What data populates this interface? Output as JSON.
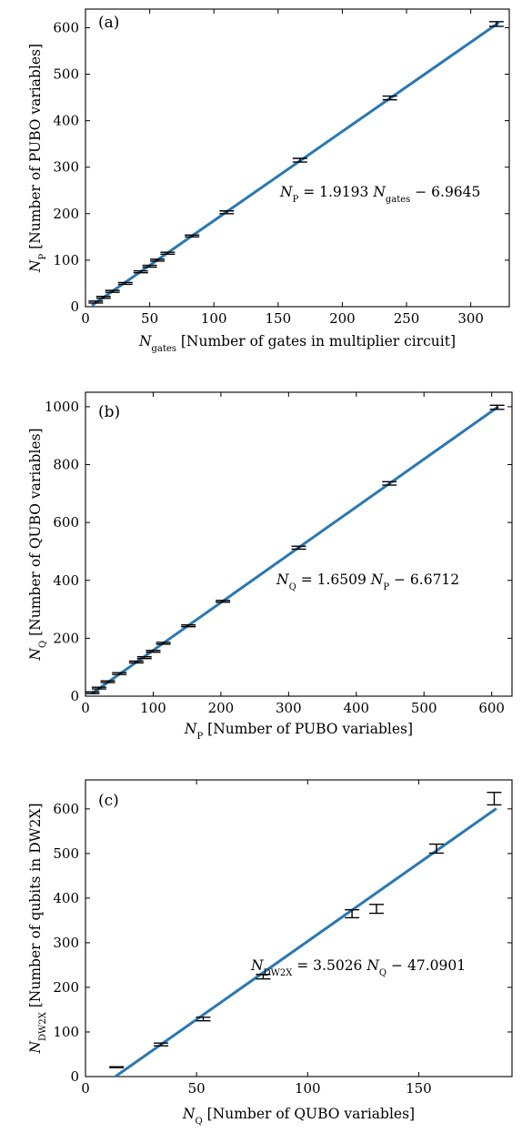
{
  "chart_data": [
    {
      "type": "scatter",
      "panel_label": "(a)",
      "xlabel_sym": "N",
      "xlabel_sub": "gates",
      "xlabel_text": "[Number of gates in multiplier circuit]",
      "ylabel_sym": "N",
      "ylabel_sub": "P",
      "ylabel_text": "[Number of PUBO variables]",
      "xlim": [
        0,
        330
      ],
      "ylim": [
        0,
        640
      ],
      "xticks": [
        0,
        50,
        100,
        150,
        200,
        250,
        300
      ],
      "yticks": [
        0,
        100,
        200,
        300,
        400,
        500,
        600
      ],
      "fit": {
        "slope": 1.9193,
        "intercept": -6.9645,
        "x_range": [
          5,
          322
        ]
      },
      "annotation": {
        "lhs": "N",
        "lhs_sub": "P",
        "eq": "= 1.9193 ",
        "var": "N",
        "var_sub": "gates",
        "rest": " − 6.9645"
      },
      "points": [
        {
          "x": 8,
          "y": 10,
          "err": 2
        },
        {
          "x": 14,
          "y": 20,
          "err": 2
        },
        {
          "x": 21,
          "y": 33,
          "err": 2
        },
        {
          "x": 31,
          "y": 50,
          "err": 2
        },
        {
          "x": 43,
          "y": 75,
          "err": 2
        },
        {
          "x": 50,
          "y": 87,
          "err": 2
        },
        {
          "x": 56,
          "y": 100,
          "err": 2
        },
        {
          "x": 64,
          "y": 115,
          "err": 2
        },
        {
          "x": 83,
          "y": 152,
          "err": 2
        },
        {
          "x": 110,
          "y": 203,
          "err": 3
        },
        {
          "x": 167,
          "y": 315,
          "err": 4
        },
        {
          "x": 237,
          "y": 449,
          "err": 4
        },
        {
          "x": 320,
          "y": 608,
          "err": 5
        }
      ]
    },
    {
      "type": "scatter",
      "panel_label": "(b)",
      "xlabel_sym": "N",
      "xlabel_sub": "P",
      "xlabel_text": "[Number of PUBO variables]",
      "ylabel_sym": "N",
      "ylabel_sub": "Q",
      "ylabel_text": "[Number of QUBO variables]",
      "xlim": [
        0,
        630
      ],
      "ylim": [
        0,
        1050
      ],
      "xticks": [
        0,
        100,
        200,
        300,
        400,
        500,
        600
      ],
      "yticks": [
        0,
        200,
        400,
        600,
        800,
        1000
      ],
      "fit": {
        "slope": 1.6509,
        "intercept": -6.6712,
        "x_range": [
          10,
          610
        ]
      },
      "annotation": {
        "lhs": "N",
        "lhs_sub": "Q",
        "eq": "= 1.6509 ",
        "var": "N",
        "var_sub": "P",
        "rest": " − 6.6712"
      },
      "points": [
        {
          "x": 10,
          "y": 12,
          "err": 3
        },
        {
          "x": 20,
          "y": 28,
          "err": 3
        },
        {
          "x": 33,
          "y": 50,
          "err": 3
        },
        {
          "x": 50,
          "y": 78,
          "err": 3
        },
        {
          "x": 75,
          "y": 118,
          "err": 3
        },
        {
          "x": 87,
          "y": 133,
          "err": 3
        },
        {
          "x": 100,
          "y": 155,
          "err": 3
        },
        {
          "x": 115,
          "y": 183,
          "err": 3
        },
        {
          "x": 152,
          "y": 243,
          "err": 3
        },
        {
          "x": 203,
          "y": 328,
          "err": 3
        },
        {
          "x": 315,
          "y": 513,
          "err": 5
        },
        {
          "x": 449,
          "y": 735,
          "err": 6
        },
        {
          "x": 608,
          "y": 998,
          "err": 7
        }
      ]
    },
    {
      "type": "scatter",
      "panel_label": "(c)",
      "xlabel_sym": "N",
      "xlabel_sub": "Q",
      "xlabel_text": "[Number of QUBO variables]",
      "ylabel_sym": "N",
      "ylabel_sub": "DW2X",
      "ylabel_text": "[Number of qubits in DW2X]",
      "xlim": [
        0,
        192
      ],
      "ylim": [
        0,
        665
      ],
      "xticks": [
        0,
        50,
        100,
        150
      ],
      "yticks": [
        0,
        100,
        200,
        300,
        400,
        500,
        600
      ],
      "fit": {
        "slope": 3.5026,
        "intercept": -47.0901,
        "x_range": [
          13.4,
          185
        ]
      },
      "annotation": {
        "lhs": "N",
        "lhs_sub": "DW2X",
        "eq": "= 3.5026 ",
        "var": "N",
        "var_sub": "Q",
        "rest": " − 47.0901"
      },
      "points": [
        {
          "x": 14,
          "y": 21,
          "err": 1
        },
        {
          "x": 34,
          "y": 72,
          "err": 3
        },
        {
          "x": 53,
          "y": 129,
          "err": 4
        },
        {
          "x": 80,
          "y": 224,
          "err": 5
        },
        {
          "x": 120,
          "y": 365,
          "err": 9
        },
        {
          "x": 131,
          "y": 376,
          "err": 10
        },
        {
          "x": 158,
          "y": 511,
          "err": 10
        },
        {
          "x": 184,
          "y": 623,
          "err": 14
        }
      ]
    }
  ]
}
